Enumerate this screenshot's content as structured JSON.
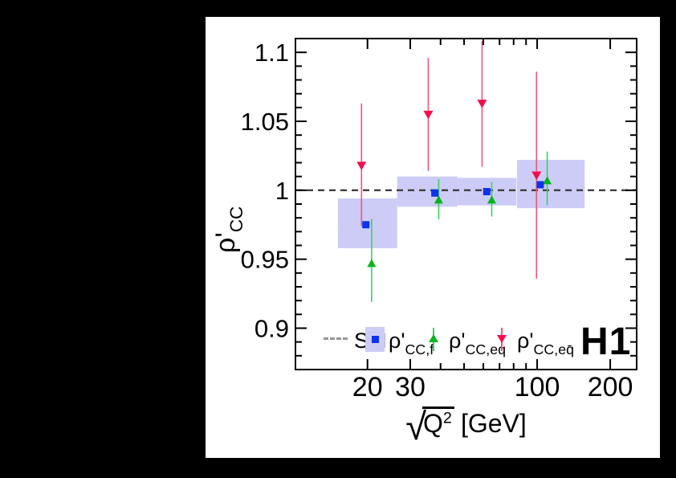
{
  "experiment_label": "H1",
  "legend": {
    "sm_label": "SM",
    "items": [
      {
        "main": "ρ'",
        "sub": "CC,f"
      },
      {
        "main": "ρ'",
        "sub": "CC,eq"
      },
      {
        "main": "ρ'",
        "sub": "CC,eq̄"
      }
    ]
  },
  "y_axis": {
    "title_main": "ρ'",
    "title_sub": "CC"
  },
  "x_axis": {
    "radical": "√",
    "radicand": "Q",
    "exponent": "2",
    "unit": "[GeV]"
  },
  "colors": {
    "frame": "#000000",
    "sm_line": "#3f3f3f",
    "legend_dash": "#97979b",
    "band": "#ccccf6",
    "blue_marker": "#0d32ea",
    "green_marker": "#00b41e",
    "green_line": "#3ecf5f",
    "red_marker": "#f30d4e",
    "red_line": "#f2557d"
  },
  "chart_data": {
    "type": "scatter",
    "title": "",
    "xlabel": "√Q² [GeV]",
    "ylabel": "ρ'_CC",
    "x_scale": "log",
    "xlim": [
      10.1,
      257
    ],
    "ylim": [
      0.87,
      1.11
    ],
    "x_ticks_major": [
      20,
      30,
      100,
      200
    ],
    "x_tick_labels": [
      "20",
      "30",
      "100",
      "200"
    ],
    "x_ticks_minor": [
      40,
      50,
      60,
      70,
      80,
      90
    ],
    "y_ticks_major": [
      0.9,
      0.95,
      1.0,
      1.05,
      1.1
    ],
    "y_tick_labels": [
      "0.9",
      "0.95",
      "1",
      "1.05",
      "1.1"
    ],
    "y_minor_step": 0.01,
    "sm_reference": 1.0,
    "grid": false,
    "legend_position": "bottom-inside",
    "series": [
      {
        "name": "ρ'_CC,f",
        "marker": "square",
        "color": "#0d32ea",
        "band_color": "#ccccf6",
        "points": [
          {
            "x": 19.7,
            "y": 0.975,
            "band_x": [
              15.1,
              26.5
            ],
            "band_y": [
              0.958,
              0.994
            ]
          },
          {
            "x": 37.9,
            "y": 0.998,
            "band_x": [
              26.5,
              46.9
            ],
            "band_y": [
              0.988,
              1.01
            ]
          },
          {
            "x": 62.0,
            "y": 0.999,
            "band_x": [
              46.9,
              82.2
            ],
            "band_y": [
              0.989,
              1.009
            ]
          },
          {
            "x": 103.0,
            "y": 1.004,
            "band_x": [
              82.6,
              157.0
            ],
            "band_y": [
              0.987,
              1.022
            ]
          }
        ]
      },
      {
        "name": "ρ'_CC,eq",
        "marker": "triangle-up",
        "color": "#00b41e",
        "line_color": "#3ecf5f",
        "points": [
          {
            "x": 20.8,
            "y": 0.947,
            "err": [
              0.919,
              0.979
            ]
          },
          {
            "x": 39.3,
            "y": 0.993,
            "err": [
              0.979,
              1.008
            ]
          },
          {
            "x": 65.0,
            "y": 0.993,
            "err": [
              0.981,
              1.006
            ]
          },
          {
            "x": 110.0,
            "y": 1.007,
            "err": [
              0.989,
              1.028
            ]
          }
        ]
      },
      {
        "name": "ρ'_CC,eq̄",
        "marker": "triangle-down",
        "color": "#f30d4e",
        "line_color": "#f2557d",
        "points": [
          {
            "x": 18.9,
            "y": 1.018,
            "err": [
              0.974,
              1.063
            ]
          },
          {
            "x": 35.6,
            "y": 1.055,
            "err": [
              1.014,
              1.096
            ]
          },
          {
            "x": 59.3,
            "y": 1.063,
            "err": [
              1.017,
              1.108
            ]
          },
          {
            "x": 99.4,
            "y": 1.011,
            "err": [
              0.936,
              1.086
            ]
          }
        ]
      }
    ]
  }
}
